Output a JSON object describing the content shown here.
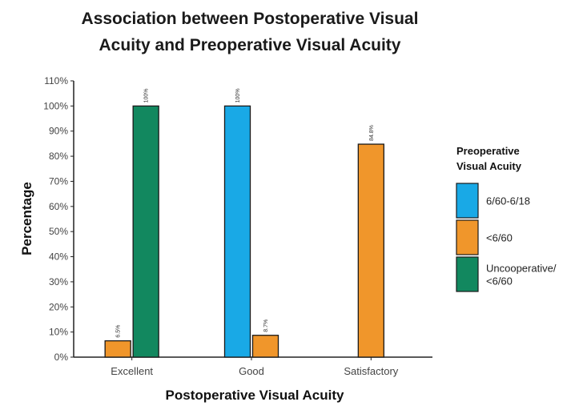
{
  "chart_data": {
    "type": "bar",
    "title": "Association between Postoperative Visual Acuity and Preoperative Visual Acuity",
    "title_lines": [
      "Association between Postoperative Visual",
      "Acuity and Preoperative Visual Acuity"
    ],
    "xlabel": "Postoperative Visual Acuity",
    "ylabel": "Percentage",
    "ylim": [
      0,
      110
    ],
    "yticks": [
      0,
      10,
      20,
      30,
      40,
      50,
      60,
      70,
      80,
      90,
      100,
      110
    ],
    "ytick_labels": [
      "0%",
      "10%",
      "20%",
      "30%",
      "40%",
      "50%",
      "60%",
      "70%",
      "80%",
      "90%",
      "100%",
      "110%"
    ],
    "categories": [
      "Excellent",
      "Good",
      "Satisfactory"
    ],
    "grid": false,
    "legend_position": "right",
    "legend_title": [
      "Preoperative",
      "Visual Acuity"
    ],
    "series": [
      {
        "name": "6/60-6/18",
        "legend_lines": [
          "6/60-6/18"
        ],
        "color": "#19a9e6",
        "values": [
          null,
          100,
          null
        ],
        "labels": [
          null,
          "100%",
          null
        ]
      },
      {
        "name": "<6/60",
        "legend_lines": [
          "<6/60"
        ],
        "color": "#f0962b",
        "values": [
          6.5,
          8.7,
          84.8
        ],
        "labels": [
          "6.5%",
          "8.7%",
          "84.8%"
        ]
      },
      {
        "name": "Uncooperative/ <6/60",
        "legend_lines": [
          "Uncooperative/",
          "<6/60"
        ],
        "color": "#12885f",
        "values": [
          100,
          null,
          null
        ],
        "labels": [
          "100%",
          null,
          null
        ]
      }
    ]
  }
}
